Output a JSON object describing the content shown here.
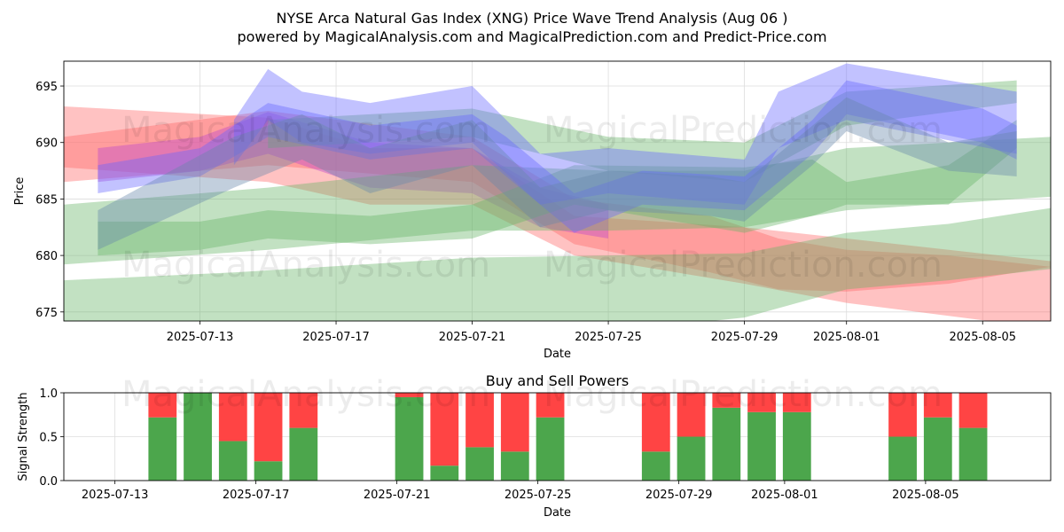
{
  "title_line1": "NYSE Arca Natural Gas Index (XNG) Price Wave Trend Analysis (Aug 06 )",
  "title_line2": "powered by MagicalAnalysis.com and MagicalPrediction.com and Predict-Price.com",
  "watermarks": [
    "MagicalAnalysis.com",
    "MagicalPrediction.com"
  ],
  "colors": {
    "green": "#4ca64c",
    "red": "#ff4444",
    "blue": "#6666ff",
    "band_red": "#ff6666",
    "band_green": "#66b366"
  },
  "chart_data": [
    {
      "type": "area",
      "title": "",
      "xlabel": "Date",
      "ylabel": "Price",
      "xlim": [
        "2025-07-09",
        "2025-08-07"
      ],
      "ylim": [
        674.2,
        697.2
      ],
      "yticks": [
        675,
        680,
        685,
        690,
        695
      ],
      "xtick_labels": [
        "2025-07-13",
        "2025-07-17",
        "2025-07-21",
        "2025-07-25",
        "2025-07-29",
        "2025-08-01",
        "2025-08-05"
      ],
      "grid": true,
      "series": [
        {
          "name": "red band upper",
          "color": "band_red",
          "x": [
            "2025-07-09",
            "2025-07-15",
            "2025-07-18",
            "2025-07-21",
            "2025-07-24",
            "2025-07-29",
            "2025-08-01",
            "2025-08-07"
          ],
          "upper": [
            693.2,
            692.2,
            689.5,
            689.5,
            683.5,
            682.5,
            681.5,
            679.5
          ],
          "lower": [
            687.8,
            686.5,
            684.5,
            684.5,
            680.0,
            677.5,
            675.8,
            673.5
          ]
        },
        {
          "name": "red band lower",
          "color": "band_red",
          "x": [
            "2025-07-09",
            "2025-07-15",
            "2025-07-21",
            "2025-07-24",
            "2025-07-28",
            "2025-07-30",
            "2025-08-01",
            "2025-08-04",
            "2025-08-07"
          ],
          "upper": [
            690.5,
            692.8,
            690.5,
            685.0,
            683.5,
            681.5,
            680.5,
            680.0,
            679.0
          ],
          "lower": [
            686.5,
            688.0,
            686.5,
            681.0,
            678.5,
            677.0,
            676.8,
            677.5,
            679.0
          ]
        },
        {
          "name": "magenta band",
          "color": "#bb44cc",
          "x": [
            "2025-07-10",
            "2025-07-13",
            "2025-07-15",
            "2025-07-18",
            "2025-07-21",
            "2025-07-23",
            "2025-07-25"
          ],
          "upper": [
            689.5,
            690.5,
            692.7,
            690.0,
            689.5,
            686.0,
            684.5
          ],
          "lower": [
            686.5,
            687.5,
            689.0,
            686.0,
            685.5,
            682.5,
            681.5
          ]
        },
        {
          "name": "green band wide low",
          "color": "band_green",
          "x": [
            "2025-07-09",
            "2025-07-14",
            "2025-07-21",
            "2025-07-29",
            "2025-08-01",
            "2025-08-04",
            "2025-08-07"
          ],
          "upper": [
            677.8,
            678.5,
            679.8,
            680.2,
            682.0,
            682.8,
            684.2
          ],
          "lower": [
            671.0,
            671.5,
            672.0,
            674.5,
            677.0,
            677.8,
            678.8
          ]
        },
        {
          "name": "green band mid",
          "color": "band_green",
          "x": [
            "2025-07-09",
            "2025-07-15",
            "2025-07-21",
            "2025-07-25",
            "2025-07-29",
            "2025-08-01",
            "2025-08-07"
          ],
          "upper": [
            684.5,
            686.0,
            688.0,
            687.5,
            687.5,
            689.5,
            690.5
          ],
          "lower": [
            679.2,
            680.5,
            682.2,
            682.2,
            682.5,
            684.0,
            685.2
          ]
        },
        {
          "name": "green band upper",
          "color": "band_green",
          "x": [
            "2025-07-10",
            "2025-07-13",
            "2025-07-15",
            "2025-07-18",
            "2025-07-21",
            "2025-07-24",
            "2025-07-29",
            "2025-07-31",
            "2025-08-01",
            "2025-08-04",
            "2025-08-06"
          ],
          "upper": [
            683.0,
            683.0,
            684.0,
            683.5,
            684.5,
            688.0,
            687.8,
            688.5,
            686.5,
            688.0,
            692.0
          ],
          "lower": [
            680.0,
            680.5,
            681.5,
            681.0,
            681.5,
            684.5,
            682.0,
            683.5,
            684.5,
            684.5,
            689.5
          ]
        },
        {
          "name": "green band top",
          "color": "band_green",
          "x": [
            "2025-07-15",
            "2025-07-21",
            "2025-07-25",
            "2025-07-29",
            "2025-08-01",
            "2025-08-06"
          ],
          "upper": [
            692.0,
            693.0,
            690.5,
            690.0,
            694.5,
            695.5
          ],
          "lower": [
            689.5,
            690.5,
            687.5,
            686.5,
            691.5,
            693.5
          ]
        },
        {
          "name": "blue band main",
          "color": "blue",
          "x": [
            "2025-07-10",
            "2025-07-13",
            "2025-07-15",
            "2025-07-18",
            "2025-07-21",
            "2025-07-22",
            "2025-07-24",
            "2025-07-26",
            "2025-07-29",
            "2025-07-31",
            "2025-08-01",
            "2025-08-05",
            "2025-08-06"
          ],
          "upper": [
            688.0,
            689.5,
            693.5,
            691.5,
            692.5,
            690.5,
            685.5,
            687.5,
            687.0,
            692.0,
            695.5,
            693.0,
            691.5
          ],
          "lower": [
            685.5,
            687.0,
            690.5,
            688.5,
            689.5,
            687.0,
            682.0,
            684.5,
            684.0,
            689.0,
            692.5,
            690.0,
            688.5
          ]
        },
        {
          "name": "blue band high",
          "color": "blue",
          "x": [
            "2025-07-14",
            "2025-07-15",
            "2025-07-16",
            "2025-07-18",
            "2025-07-21",
            "2025-07-23",
            "2025-07-25",
            "2025-07-29",
            "2025-07-30",
            "2025-08-01",
            "2025-08-06"
          ],
          "upper": [
            692.0,
            696.5,
            694.5,
            693.5,
            695.0,
            689.0,
            689.5,
            688.5,
            694.5,
            697.0,
            694.5
          ],
          "lower": [
            688.0,
            692.0,
            690.0,
            689.0,
            690.0,
            684.5,
            685.5,
            684.5,
            689.5,
            692.0,
            689.0
          ]
        },
        {
          "name": "slate band",
          "color": "#6688aa",
          "x": [
            "2025-07-10",
            "2025-07-14",
            "2025-07-16",
            "2025-07-18",
            "2025-07-21",
            "2025-07-23",
            "2025-07-25",
            "2025-07-28",
            "2025-07-29",
            "2025-07-31",
            "2025-08-01",
            "2025-08-04",
            "2025-08-06"
          ],
          "upper": [
            684.0,
            690.5,
            692.5,
            689.5,
            692.0,
            686.0,
            687.5,
            687.0,
            686.5,
            691.5,
            694.0,
            690.0,
            691.0
          ],
          "lower": [
            680.5,
            686.0,
            688.5,
            685.5,
            688.0,
            682.5,
            684.0,
            683.5,
            683.0,
            688.0,
            691.0,
            687.5,
            687.0
          ]
        }
      ]
    },
    {
      "type": "bar",
      "title": "Buy and Sell Powers",
      "xlabel": "Date",
      "ylabel": "Signal Strength",
      "ylim": [
        0,
        1
      ],
      "yticks": [
        0,
        0.5,
        1.0
      ],
      "ytick_labels": [
        "0.0",
        "0.5",
        "1.0"
      ],
      "xtick_labels": [
        "2025-07-13",
        "2025-07-17",
        "2025-07-21",
        "2025-07-25",
        "2025-07-29",
        "2025-08-01",
        "2025-08-05"
      ],
      "grid": true,
      "series": [
        {
          "name": "Buy",
          "color": "green"
        },
        {
          "name": "Sell",
          "color": "red"
        }
      ],
      "dates": [
        "2025-07-14",
        "2025-07-15",
        "2025-07-16",
        "2025-07-17",
        "2025-07-18",
        "2025-07-21",
        "2025-07-22",
        "2025-07-23",
        "2025-07-24",
        "2025-07-25",
        "2025-07-28",
        "2025-07-29",
        "2025-07-30",
        "2025-07-31",
        "2025-08-01",
        "2025-08-04",
        "2025-08-05",
        "2025-08-06"
      ],
      "buy": [
        0.72,
        1.0,
        0.45,
        0.22,
        0.6,
        0.95,
        0.17,
        0.38,
        0.33,
        0.72,
        0.33,
        0.5,
        0.83,
        0.78,
        0.78,
        0.5,
        0.72,
        0.6
      ]
    }
  ]
}
